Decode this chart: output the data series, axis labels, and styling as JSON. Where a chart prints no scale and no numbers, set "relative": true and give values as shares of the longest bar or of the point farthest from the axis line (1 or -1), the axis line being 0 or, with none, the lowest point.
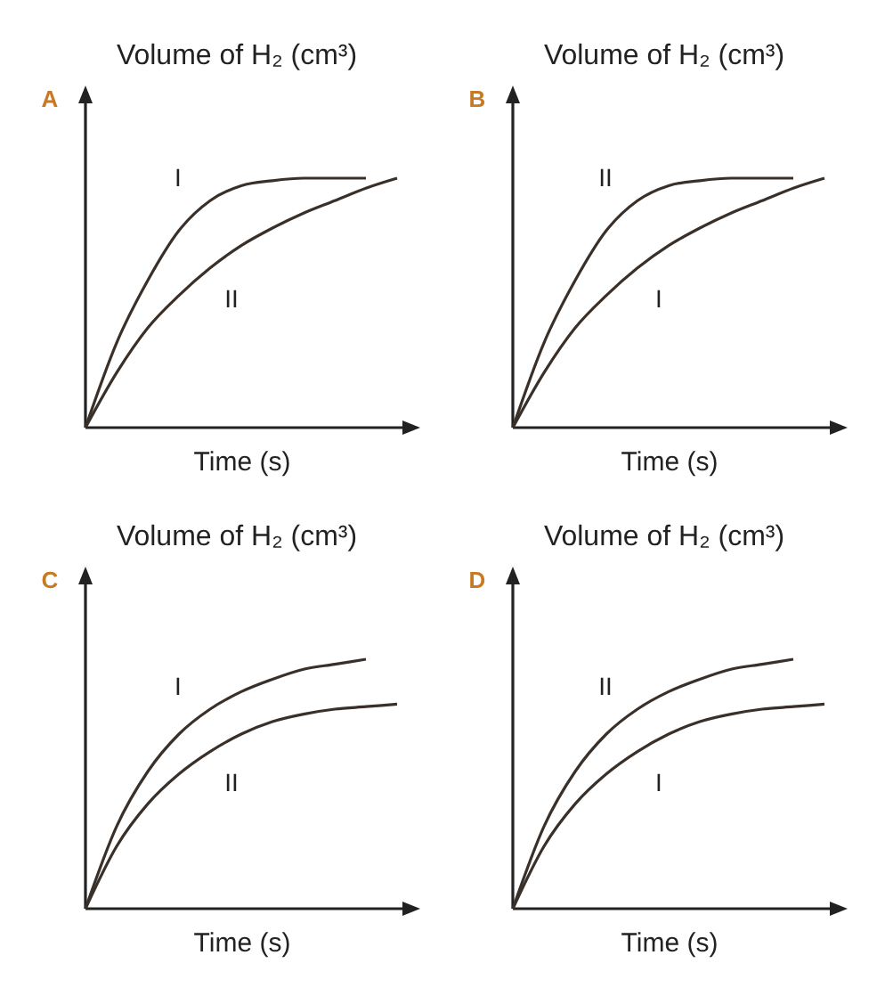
{
  "chart_data": [
    {
      "type": "line",
      "title": "A",
      "xlabel": "Time (s)",
      "ylabel": "Volume of H₂ (cm³)",
      "relative": true,
      "categories": [
        null,
        null,
        null,
        null,
        null,
        null,
        null,
        null,
        null,
        null,
        null
      ],
      "series": [
        {
          "name": "I",
          "color": "#3a302a",
          "values": [
            0,
            0.34,
            0.59,
            0.79,
            0.91,
            0.97,
            0.99,
            1,
            1,
            1,
            null
          ]
        },
        {
          "name": "II",
          "color": "#3a302a",
          "values": [
            0,
            0.22,
            0.4,
            0.53,
            0.64,
            0.73,
            0.8,
            0.86,
            0.91,
            0.96,
            1
          ]
        }
      ]
    },
    {
      "type": "line",
      "title": "B",
      "xlabel": "Time (s)",
      "ylabel": "Volume of H₂ (cm³)",
      "relative": true,
      "categories": [
        null,
        null,
        null,
        null,
        null,
        null,
        null,
        null,
        null,
        null,
        null
      ],
      "series": [
        {
          "name": "I",
          "color": "#3a302a",
          "values": [
            0,
            0.22,
            0.4,
            0.53,
            0.64,
            0.73,
            0.8,
            0.86,
            0.91,
            0.96,
            1
          ]
        },
        {
          "name": "II",
          "color": "#3a302a",
          "values": [
            0,
            0.34,
            0.59,
            0.79,
            0.91,
            0.97,
            0.99,
            1,
            1,
            1,
            null
          ]
        }
      ]
    },
    {
      "type": "line",
      "title": "C",
      "xlabel": "Time (s)",
      "ylabel": "Volume of H₂ (cm³)",
      "relative": true,
      "categories": [
        null,
        null,
        null,
        null,
        null,
        null,
        null,
        null,
        null,
        null,
        null
      ],
      "series": [
        {
          "name": "I",
          "color": "#3a302a",
          "values": [
            0,
            0.33,
            0.55,
            0.7,
            0.8,
            0.87,
            0.92,
            0.96,
            0.98,
            1,
            null
          ]
        },
        {
          "name": "II",
          "color": "#3a302a",
          "values": [
            0,
            0.25,
            0.42,
            0.54,
            0.63,
            0.7,
            0.75,
            0.78,
            0.8,
            0.81,
            0.82
          ]
        }
      ]
    },
    {
      "type": "line",
      "title": "D",
      "xlabel": "Time (s)",
      "ylabel": "Volume of H₂ (cm³)",
      "relative": true,
      "categories": [
        null,
        null,
        null,
        null,
        null,
        null,
        null,
        null,
        null,
        null,
        null
      ],
      "series": [
        {
          "name": "I",
          "color": "#3a302a",
          "values": [
            0,
            0.25,
            0.42,
            0.54,
            0.63,
            0.7,
            0.75,
            0.78,
            0.8,
            0.81,
            0.82
          ]
        },
        {
          "name": "II",
          "color": "#3a302a",
          "values": [
            0,
            0.33,
            0.55,
            0.7,
            0.8,
            0.87,
            0.92,
            0.96,
            0.98,
            1,
            null
          ]
        }
      ]
    }
  ]
}
